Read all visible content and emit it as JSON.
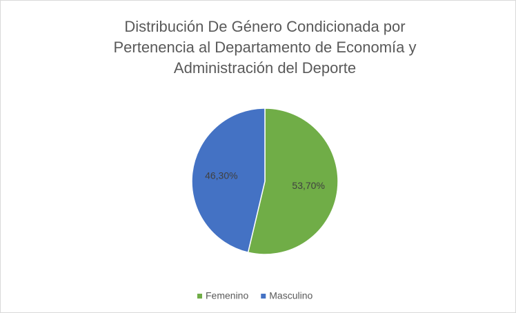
{
  "chart_data": {
    "type": "pie",
    "title": [
      "Distribución De Género Condicionada por",
      "Pertenencia al Departamento de Economía y",
      "Administración del Deporte"
    ],
    "categories": [
      "Femenino",
      "Masculino"
    ],
    "values": [
      53.7,
      46.3
    ],
    "value_labels": [
      "53,70%",
      "46,30%"
    ],
    "colors": [
      "#70ad47",
      "#4472c4"
    ],
    "legend": "bottom"
  }
}
